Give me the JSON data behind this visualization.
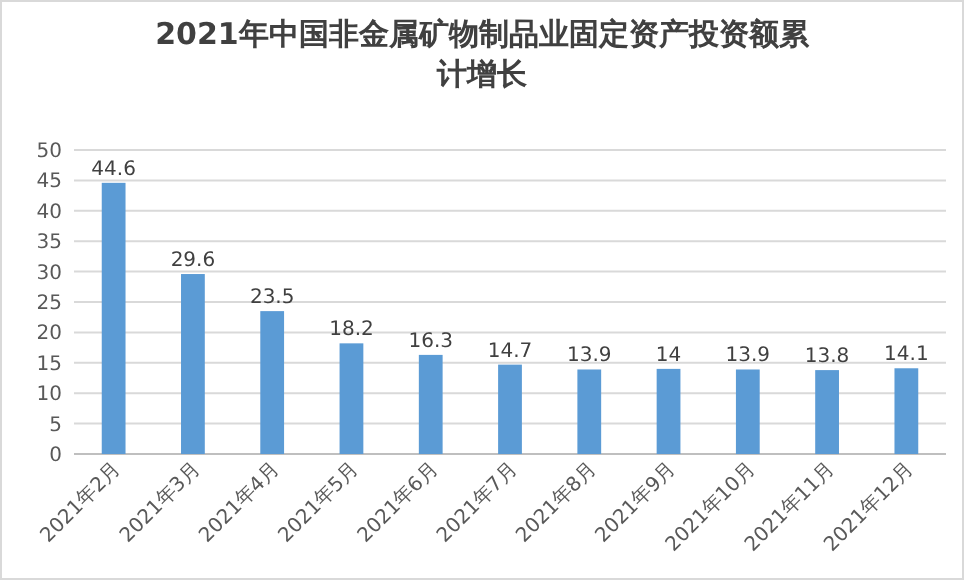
{
  "chart_data": {
    "type": "bar",
    "title": "2021年中国非金属矿物制品业固定资产投资额累计增长",
    "categories": [
      "2021年2月",
      "2021年3月",
      "2021年4月",
      "2021年5月",
      "2021年6月",
      "2021年7月",
      "2021年8月",
      "2021年9月",
      "2021年10月",
      "2021年11月",
      "2021年12月"
    ],
    "values": [
      44.6,
      29.6,
      23.5,
      18.2,
      16.3,
      14.7,
      13.9,
      14,
      13.9,
      13.8,
      14.1
    ],
    "color": "#5b9bd5",
    "ylim": [
      0,
      50
    ],
    "yticks": [
      0,
      5,
      10,
      15,
      20,
      25,
      30,
      35,
      40,
      45,
      50
    ],
    "grid": "y",
    "data_labels": true
  }
}
